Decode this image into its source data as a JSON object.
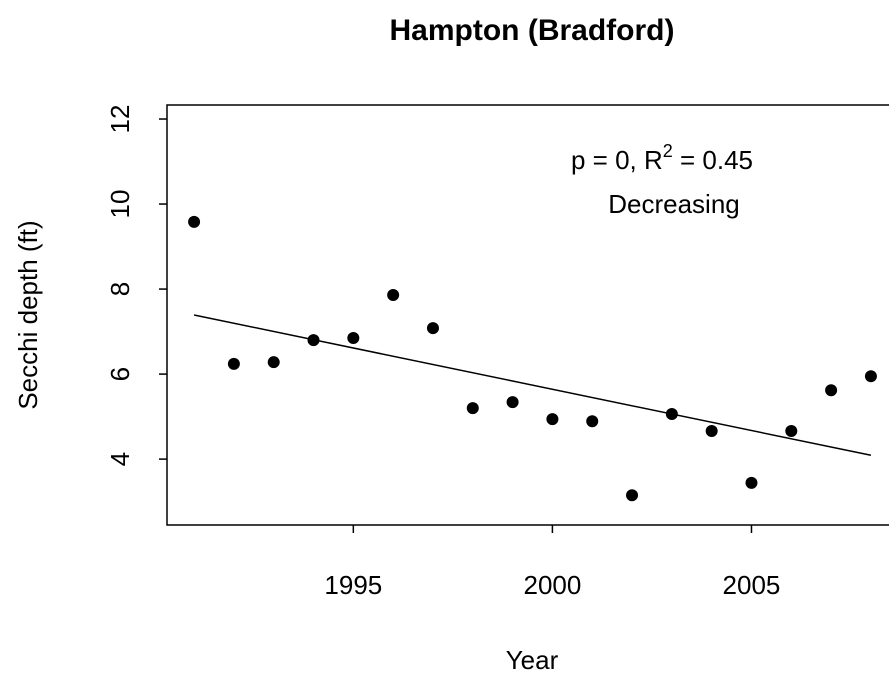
{
  "chart_data": {
    "type": "scatter",
    "title": "Hampton (Bradford)",
    "x_label": "Year",
    "y_label": "Secchi depth (ft)",
    "annotation": {
      "text_before": "p = 0, R",
      "superscript": "2",
      "text_after": " = 0.45",
      "trend_label": "Decreasing"
    },
    "x": [
      1991,
      1992,
      1993,
      1994,
      1995,
      1996,
      1997,
      1998,
      1999,
      2000,
      2001,
      2002,
      2003,
      2004,
      2005,
      2006,
      2007,
      2008
    ],
    "series": [
      {
        "color": "#000000",
        "values": [
          9.58,
          6.24,
          6.28,
          6.8,
          6.85,
          7.86,
          7.08,
          5.2,
          5.34,
          4.94,
          4.89,
          3.15,
          5.06,
          4.66,
          3.44,
          4.66,
          5.62,
          5.95
        ]
      }
    ],
    "trend": {
      "x": [
        1991,
        2008
      ],
      "values": [
        7.39,
        4.09
      ],
      "color": "#000000"
    },
    "xlim": [
      1990.32,
      2008.68
    ],
    "ylim": [
      2.45,
      12.33
    ],
    "xticks": [
      1995,
      2000,
      2005
    ],
    "yticks": [
      4,
      6,
      8,
      10,
      12
    ]
  }
}
